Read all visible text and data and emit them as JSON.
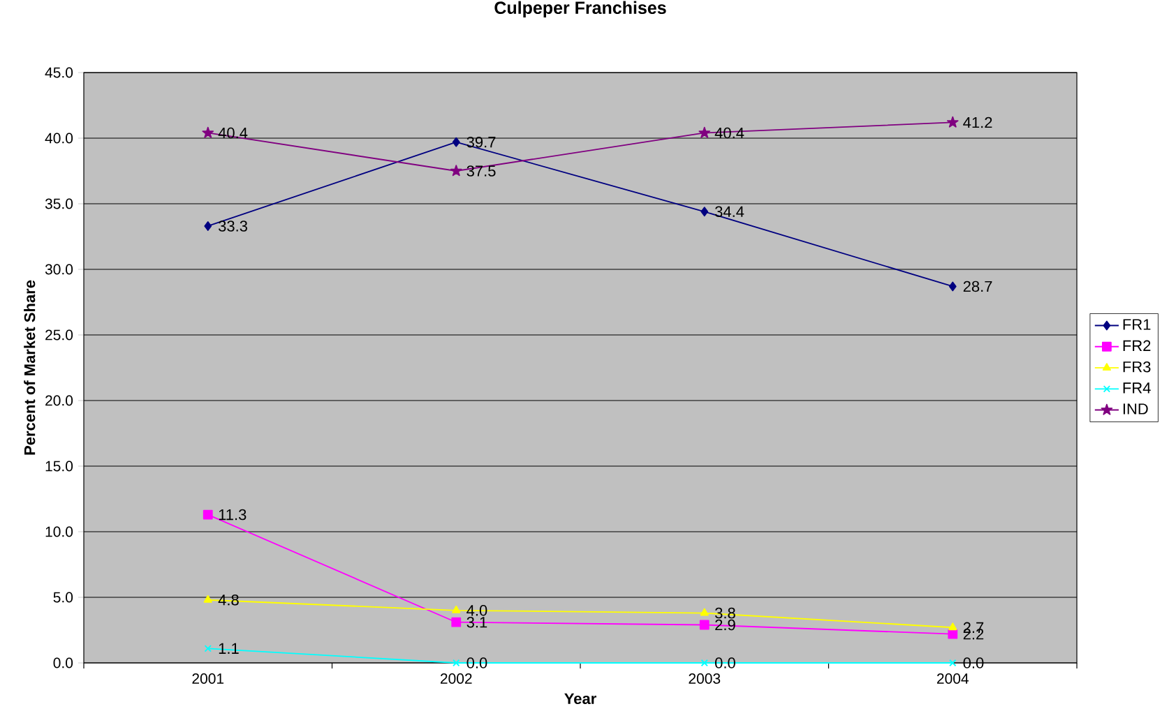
{
  "chart_data": {
    "type": "line",
    "title": "Culpeper Franchises",
    "xlabel": "Year",
    "ylabel": "Percent of Market Share",
    "categories": [
      "2001",
      "2002",
      "2003",
      "2004"
    ],
    "series": [
      {
        "name": "FR1",
        "color": "#000080",
        "marker": "diamond",
        "values": [
          33.3,
          39.7,
          34.4,
          28.7
        ],
        "value_labels": [
          "33.3",
          "39.7",
          "34.4",
          "28.7"
        ]
      },
      {
        "name": "FR2",
        "color": "#ff00ff",
        "marker": "square",
        "values": [
          11.3,
          3.1,
          2.9,
          2.2
        ],
        "value_labels": [
          "11.3",
          "3.1",
          "2.9",
          "2.2"
        ]
      },
      {
        "name": "FR3",
        "color": "#ffff00",
        "marker": "triangle",
        "values": [
          4.8,
          4.0,
          3.8,
          2.7
        ],
        "value_labels": [
          "4.8",
          "4.0",
          "3.8",
          "2.7"
        ]
      },
      {
        "name": "FR4",
        "color": "#00ffff",
        "marker": "cross",
        "values": [
          1.1,
          0.0,
          0.0,
          0.0
        ],
        "value_labels": [
          "1.1",
          "0.0",
          "0.0",
          "0.0"
        ]
      },
      {
        "name": "IND",
        "color": "#800080",
        "marker": "star",
        "values": [
          40.4,
          37.5,
          40.4,
          41.2
        ],
        "value_labels": [
          "40.4",
          "37.5",
          "40.4",
          "41.2"
        ]
      }
    ],
    "ylim": [
      0,
      45
    ],
    "yticks": [
      {
        "value": 0,
        "label": "0.0"
      },
      {
        "value": 5,
        "label": "5.0"
      },
      {
        "value": 10,
        "label": "10.0"
      },
      {
        "value": 15,
        "label": "15.0"
      },
      {
        "value": 20,
        "label": "20.0"
      },
      {
        "value": 25,
        "label": "25.0"
      },
      {
        "value": 30,
        "label": "30.0"
      },
      {
        "value": 35,
        "label": "35.0"
      },
      {
        "value": 40,
        "label": "40.0"
      },
      {
        "value": 45,
        "label": "45.0"
      }
    ],
    "grid": "y",
    "legend": "right",
    "line_style": "solid"
  }
}
